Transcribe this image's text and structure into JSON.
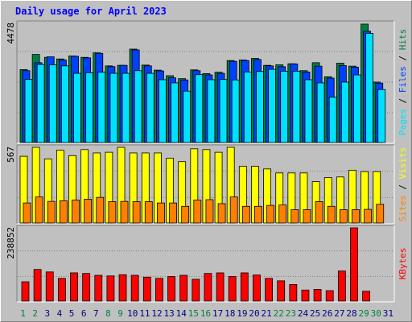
{
  "title": "Daily usage for April 2023",
  "colors": {
    "background": "#c0c0c0",
    "hits": "#008040",
    "files": "#0040ff",
    "pages": "#00e0ff",
    "visits": "#ffff00",
    "sites": "#ff8000",
    "kbytes": "#ff0000",
    "weekend_day": "#008040",
    "weekday": "#000080"
  },
  "chart_data": [
    {
      "type": "bar",
      "panel": "hits-files-pages",
      "ymax_label": "4478",
      "ylim": [
        0,
        4478
      ],
      "categories": [
        "1",
        "2",
        "3",
        "4",
        "5",
        "6",
        "7",
        "8",
        "9",
        "10",
        "11",
        "12",
        "13",
        "14",
        "15",
        "16",
        "17",
        "18",
        "19",
        "20",
        "21",
        "22",
        "23",
        "24",
        "25",
        "26",
        "27",
        "28",
        "29",
        "30",
        "31"
      ],
      "series": [
        {
          "name": "Hits",
          "values": [
            2740,
            3310,
            3200,
            3140,
            3250,
            3200,
            3370,
            2880,
            2900,
            3510,
            2910,
            2720,
            2510,
            2400,
            2730,
            2590,
            2640,
            3080,
            3100,
            3160,
            2900,
            2920,
            2960,
            2700,
            3000,
            2470,
            2980,
            2870,
            4450,
            2270,
            0
          ]
        },
        {
          "name": "Files",
          "values": [
            2700,
            3000,
            3220,
            3100,
            3240,
            3180,
            3350,
            2850,
            2900,
            3480,
            2880,
            2690,
            2430,
            2350,
            2700,
            2540,
            2600,
            3050,
            3080,
            3120,
            2880,
            2850,
            2950,
            2650,
            2870,
            2420,
            2890,
            2830,
            4180,
            2230,
            0
          ]
        },
        {
          "name": "Pages",
          "values": [
            2370,
            2930,
            2920,
            2880,
            2600,
            2620,
            2640,
            2600,
            2600,
            2700,
            2600,
            2360,
            2240,
            1930,
            2550,
            2360,
            2370,
            2350,
            2650,
            2670,
            2750,
            2680,
            2680,
            2360,
            2240,
            1700,
            2270,
            2540,
            4100,
            1990,
            0
          ]
        }
      ]
    },
    {
      "type": "bar",
      "panel": "visits-sites",
      "ymax_label": "567",
      "ylim": [
        0,
        567
      ],
      "categories": [
        "1",
        "2",
        "3",
        "4",
        "5",
        "6",
        "7",
        "8",
        "9",
        "10",
        "11",
        "12",
        "13",
        "14",
        "15",
        "16",
        "17",
        "18",
        "19",
        "20",
        "21",
        "22",
        "23",
        "24",
        "25",
        "26",
        "27",
        "28",
        "29",
        "30",
        "31"
      ],
      "series": [
        {
          "name": "Visits",
          "values": [
            500,
            567,
            480,
            545,
            505,
            550,
            525,
            530,
            567,
            525,
            525,
            525,
            485,
            460,
            556,
            550,
            530,
            567,
            425,
            425,
            405,
            375,
            375,
            375,
            310,
            340,
            345,
            395,
            385,
            385,
            0
          ]
        },
        {
          "name": "Sites",
          "values": [
            150,
            195,
            162,
            167,
            172,
            178,
            192,
            160,
            162,
            160,
            160,
            150,
            150,
            125,
            172,
            175,
            145,
            195,
            125,
            125,
            132,
            135,
            100,
            100,
            160,
            125,
            100,
            100,
            102,
            140,
            0
          ]
        }
      ]
    },
    {
      "type": "bar",
      "panel": "kbytes",
      "ymax_label": "238852",
      "ylim": [
        0,
        238852
      ],
      "categories": [
        "1",
        "2",
        "3",
        "4",
        "5",
        "6",
        "7",
        "8",
        "9",
        "10",
        "11",
        "12",
        "13",
        "14",
        "15",
        "16",
        "17",
        "18",
        "19",
        "20",
        "21",
        "22",
        "23",
        "24",
        "25",
        "26",
        "27",
        "28",
        "29",
        "30",
        "31"
      ],
      "series": [
        {
          "name": "KBytes",
          "values": [
            63000,
            103000,
            95000,
            74000,
            92000,
            90000,
            84000,
            82000,
            86000,
            84000,
            78000,
            74000,
            80000,
            84000,
            71000,
            90000,
            92000,
            80000,
            92000,
            85000,
            74000,
            66000,
            54000,
            36000,
            38000,
            34000,
            98000,
            238852,
            32000,
            0,
            0
          ]
        }
      ]
    }
  ],
  "right_labels": {
    "top": [
      {
        "text": "Pages",
        "color": "pages"
      },
      {
        "text": " / ",
        "color": "slash"
      },
      {
        "text": "Files",
        "color": "files"
      },
      {
        "text": " / ",
        "color": "slash"
      },
      {
        "text": "Hits",
        "color": "hits"
      }
    ],
    "middle": [
      {
        "text": "Sites",
        "color": "sites"
      },
      {
        "text": " / ",
        "color": "slash"
      },
      {
        "text": "Visits",
        "color": "visits"
      }
    ],
    "bottom": [
      {
        "text": "KBytes",
        "color": "kbytes"
      }
    ]
  },
  "weekend_days": [
    "1",
    "2",
    "8",
    "9",
    "15",
    "16",
    "22",
    "23",
    "29",
    "30"
  ]
}
